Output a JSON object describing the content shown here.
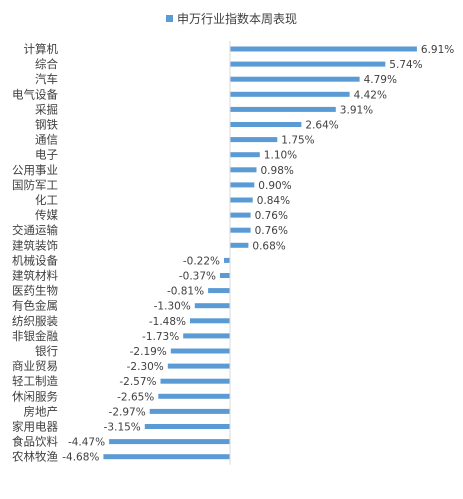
{
  "chart_data": {
    "type": "bar",
    "orientation": "horizontal",
    "legend": {
      "position": "top",
      "entries": [
        "申万行业指数本周表现"
      ]
    },
    "series": [
      {
        "name": "申万行业指数本周表现",
        "color": "#5b9bd5",
        "values": [
          6.91,
          5.74,
          4.79,
          4.42,
          3.91,
          2.64,
          1.75,
          1.1,
          0.98,
          0.9,
          0.84,
          0.76,
          0.76,
          0.68,
          -0.22,
          -0.37,
          -0.81,
          -1.3,
          -1.48,
          -1.73,
          -2.19,
          -2.3,
          -2.57,
          -2.65,
          -2.97,
          -3.15,
          -4.47,
          -4.68
        ]
      }
    ],
    "categories": [
      "计算机",
      "综合",
      "汽车",
      "电气设备",
      "采掘",
      "钢铁",
      "通信",
      "电子",
      "公用事业",
      "国防军工",
      "化工",
      "传媒",
      "交通运输",
      "建筑装饰",
      "机械设备",
      "建筑材料",
      "医药生物",
      "有色金属",
      "纺织服装",
      "非银金融",
      "银行",
      "商业贸易",
      "轻工制造",
      "休闲服务",
      "房地产",
      "家用电器",
      "食品饮料",
      "农林牧渔"
    ],
    "value_labels": [
      "6.91%",
      "5.74%",
      "4.79%",
      "4.42%",
      "3.91%",
      "2.64%",
      "1.75%",
      "1.10%",
      "0.98%",
      "0.90%",
      "0.84%",
      "0.76%",
      "0.76%",
      "0.68%",
      "-0.22%",
      "-0.37%",
      "-0.81%",
      "-1.30%",
      "-1.48%",
      "-1.73%",
      "-2.19%",
      "-2.30%",
      "-2.57%",
      "-2.65%",
      "-2.97%",
      "-3.15%",
      "-4.47%",
      "-4.68%"
    ],
    "xlim": [
      -4.68,
      6.91
    ],
    "grid": false
  }
}
